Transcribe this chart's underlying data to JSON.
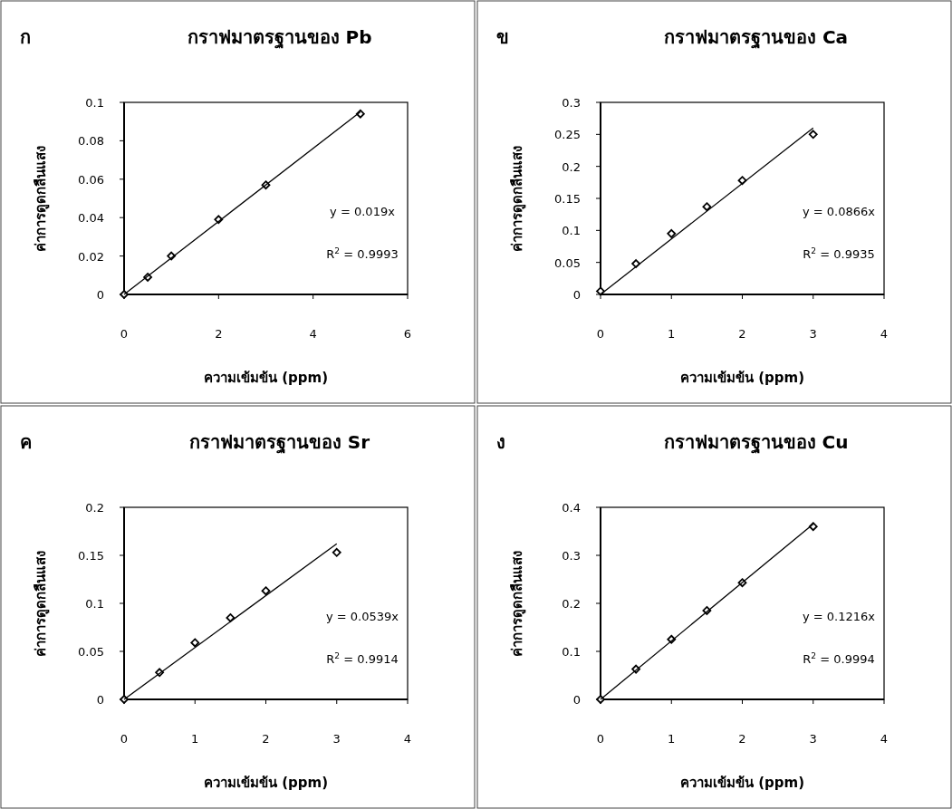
{
  "chart_data": [
    {
      "type": "scatter",
      "title": "กราฟมาตรฐานของ Pb",
      "xlabel": "ความเข้มข้น (ppm)",
      "ylabel": "ค่าการดูดกลืนแสง",
      "annotations": [
        "ก",
        "y = 0.019x",
        "R$^{2}$ = 0.9993"
      ],
      "xlim": [
        0,
        6
      ],
      "xticks": [
        0,
        2,
        4,
        6
      ],
      "ylim": [
        0,
        0.1
      ],
      "yticks": [
        0,
        0.02,
        0.04,
        0.06,
        0.08,
        0.1
      ],
      "grid": false,
      "series": [
        {
          "color": "#000000",
          "marker": "diamond",
          "x": [
            0,
            0.5,
            1,
            2,
            3,
            5
          ],
          "values": [
            0,
            0.009,
            0.02,
            0.039,
            0.057,
            0.094
          ]
        },
        {
          "type": "line",
          "color": "#000000",
          "marker": "none",
          "line_style": "solid",
          "x": [
            0,
            5
          ],
          "values": [
            0,
            0.095
          ]
        }
      ]
    },
    {
      "type": "scatter",
      "title": "กราฟมาตรฐานของ Ca",
      "xlabel": "ความเข้มข้น (ppm)",
      "ylabel": "ค่าการดูดกลืนแสง",
      "annotations": [
        "ข",
        "y = 0.0866x",
        "R$^{2}$ = 0.9935"
      ],
      "xlim": [
        0,
        4
      ],
      "xticks": [
        0,
        1,
        2,
        3,
        4
      ],
      "ylim": [
        0,
        0.3
      ],
      "yticks": [
        0,
        0.05,
        0.1,
        0.15,
        0.2,
        0.25,
        0.3
      ],
      "grid": false,
      "series": [
        {
          "color": "#000000",
          "marker": "diamond",
          "x": [
            0,
            0.5,
            1,
            1.5,
            2,
            3
          ],
          "values": [
            0.005,
            0.048,
            0.095,
            0.137,
            0.178,
            0.25
          ]
        },
        {
          "type": "line",
          "color": "#000000",
          "marker": "none",
          "line_style": "solid",
          "x": [
            0,
            3
          ],
          "values": [
            0,
            0.26
          ]
        }
      ]
    },
    {
      "type": "scatter",
      "title": "กราฟมาตรฐานของ Sr",
      "xlabel": "ความเข้มข้น (ppm)",
      "ylabel": "ค่าการดูดกลืนแสง",
      "annotations": [
        "ค",
        "y = 0.0539x",
        "R$^{2}$ = 0.9914"
      ],
      "xlim": [
        0,
        4
      ],
      "xticks": [
        0,
        1,
        2,
        3,
        4
      ],
      "ylim": [
        0,
        0.2
      ],
      "yticks": [
        0,
        0.05,
        0.1,
        0.15,
        0.2
      ],
      "grid": false,
      "series": [
        {
          "color": "#000000",
          "marker": "diamond",
          "x": [
            0,
            0.5,
            1,
            1.5,
            2,
            3
          ],
          "values": [
            0,
            0.028,
            0.059,
            0.085,
            0.113,
            0.153
          ]
        },
        {
          "type": "line",
          "color": "#000000",
          "marker": "none",
          "line_style": "solid",
          "x": [
            0,
            3
          ],
          "values": [
            0,
            0.162
          ]
        }
      ]
    },
    {
      "type": "scatter",
      "title": "กราฟมาตรฐานของ Cu",
      "xlabel": "ความเข้มข้น (ppm)",
      "ylabel": "ค่าการดูดกลืนแสง",
      "annotations": [
        "ง",
        "y = 0.1216x",
        "R$^{2}$ = 0.9994"
      ],
      "xlim": [
        0,
        4
      ],
      "xticks": [
        0,
        1,
        2,
        3,
        4
      ],
      "ylim": [
        0,
        0.4
      ],
      "yticks": [
        0,
        0.1,
        0.2,
        0.3,
        0.4
      ],
      "grid": false,
      "series": [
        {
          "color": "#000000",
          "marker": "diamond",
          "x": [
            0,
            0.5,
            1,
            1.5,
            2,
            3
          ],
          "values": [
            0,
            0.063,
            0.125,
            0.185,
            0.243,
            0.36
          ]
        },
        {
          "type": "line",
          "color": "#000000",
          "marker": "none",
          "line_style": "solid",
          "x": [
            0,
            3
          ],
          "values": [
            0,
            0.365
          ]
        }
      ]
    }
  ]
}
